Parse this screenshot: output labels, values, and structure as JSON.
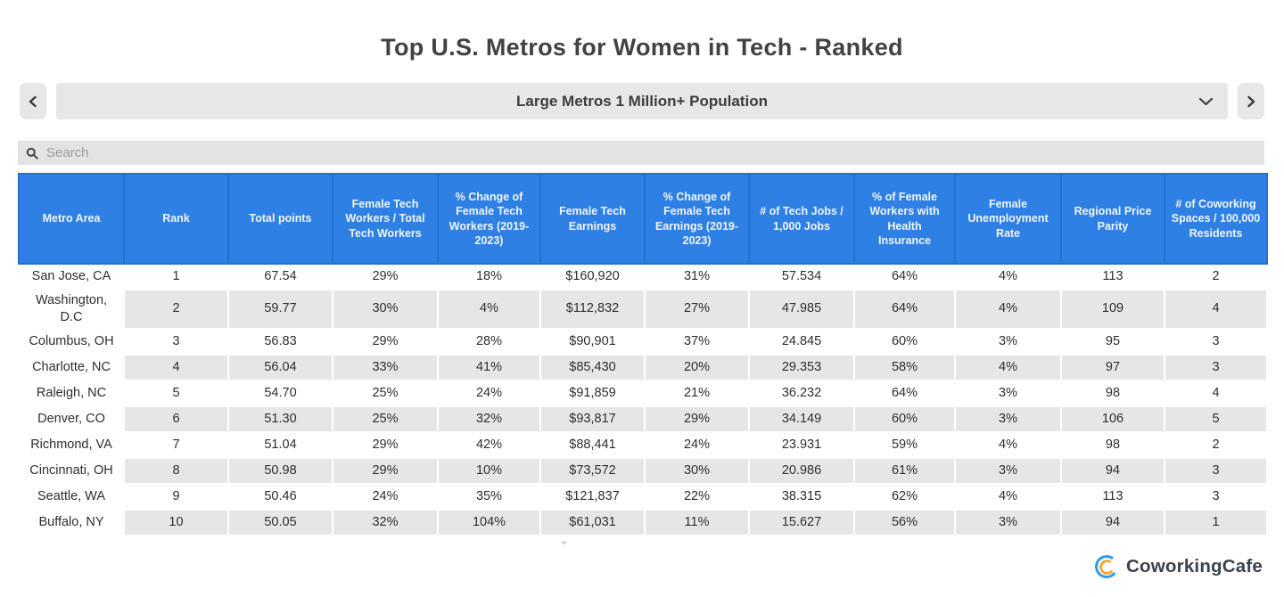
{
  "page": {
    "title": "Top U.S. Metros for Women in Tech - Ranked"
  },
  "controls": {
    "prev_icon": "chevron-left",
    "next_icon": "chevron-right",
    "dropdown": {
      "selected": "Large Metros 1 Million+ Population"
    },
    "search": {
      "placeholder": "Search"
    }
  },
  "table": {
    "columns": [
      "Metro Area",
      "Rank",
      "Total points",
      "Female Tech Workers / Total Tech Workers",
      "% Change of Female Tech Workers (2019-2023)",
      "Female Tech Earnings",
      "% Change of Female Tech Earnings (2019-2023)",
      "# of Tech Jobs / 1,000 Jobs",
      "% of Female Workers with Health Insurance",
      "Female Unemployment Rate",
      "Regional Price Parity",
      "# of Coworking Spaces / 100,000 Residents"
    ],
    "rows": [
      [
        "San Jose, CA",
        "1",
        "67.54",
        "29%",
        "18%",
        "$160,920",
        "31%",
        "57.534",
        "64%",
        "4%",
        "113",
        "2"
      ],
      [
        "Washington,\nD.C",
        "2",
        "59.77",
        "30%",
        "4%",
        "$112,832",
        "27%",
        "47.985",
        "64%",
        "4%",
        "109",
        "4"
      ],
      [
        "Columbus, OH",
        "3",
        "56.83",
        "29%",
        "28%",
        "$90,901",
        "37%",
        "24.845",
        "60%",
        "3%",
        "95",
        "3"
      ],
      [
        "Charlotte, NC",
        "4",
        "56.04",
        "33%",
        "41%",
        "$85,430",
        "20%",
        "29.353",
        "58%",
        "4%",
        "97",
        "3"
      ],
      [
        "Raleigh, NC",
        "5",
        "54.70",
        "25%",
        "24%",
        "$91,859",
        "21%",
        "36.232",
        "64%",
        "3%",
        "98",
        "4"
      ],
      [
        "Denver, CO",
        "6",
        "51.30",
        "25%",
        "32%",
        "$93,817",
        "29%",
        "34.149",
        "60%",
        "3%",
        "106",
        "5"
      ],
      [
        "Richmond, VA",
        "7",
        "51.04",
        "29%",
        "42%",
        "$88,441",
        "24%",
        "23.931",
        "59%",
        "4%",
        "98",
        "2"
      ],
      [
        "Cincinnati, OH",
        "8",
        "50.98",
        "29%",
        "10%",
        "$73,572",
        "30%",
        "20.986",
        "61%",
        "3%",
        "94",
        "3"
      ],
      [
        "Seattle, WA",
        "9",
        "50.46",
        "24%",
        "35%",
        "$121,837",
        "22%",
        "38.315",
        "62%",
        "4%",
        "113",
        "3"
      ],
      [
        "Buffalo, NY",
        "10",
        "50.05",
        "32%",
        "104%",
        "$61,031",
        "11%",
        "15.627",
        "56%",
        "3%",
        "94",
        "1"
      ]
    ]
  },
  "footer": {
    "brand": "CoworkingCafe"
  },
  "colors": {
    "header_blue": "#2e80e4",
    "header_border": "#2271d2",
    "stripe_gray": "#e6e6e6",
    "control_gray": "#e7e7e7",
    "brand_blue": "#2e9bf0",
    "brand_orange": "#f6a92c"
  }
}
